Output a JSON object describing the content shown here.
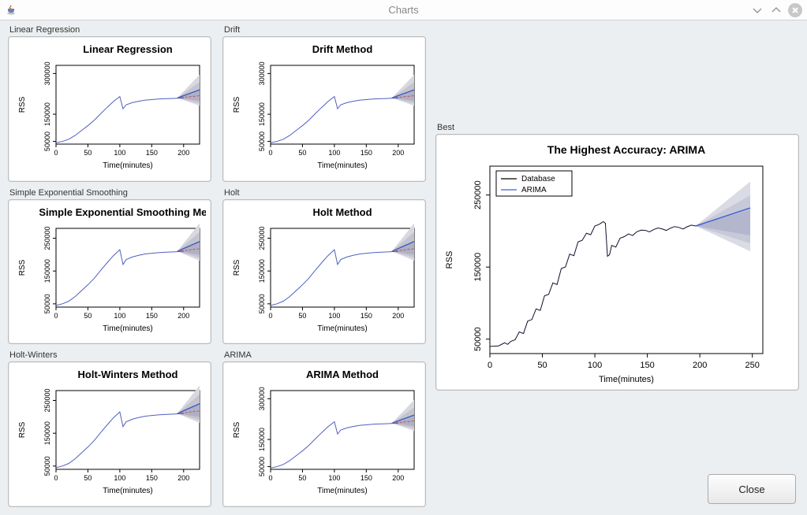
{
  "window": {
    "title": "Charts",
    "close_label": "Close"
  },
  "small_chart_common": {
    "xlabel": "Time(minutes)",
    "ylabel": "RSS",
    "xticks": [
      0,
      50,
      100,
      150,
      200
    ],
    "axis_color": "#000000",
    "text_color": "#000000",
    "line_color": "#5060c0",
    "forecast_mean_color": "#3050c0",
    "forecast_alt_color": "#c04040",
    "forecast_band_colors": [
      "#d8d8e0",
      "#c4c4d0",
      "#b0b0c4"
    ],
    "background": "#ffffff",
    "title_fontsize": 13,
    "label_fontsize": 10,
    "tick_fontsize": 9,
    "series_points_x": [
      0,
      10,
      20,
      30,
      40,
      50,
      60,
      70,
      80,
      90,
      100,
      105,
      110,
      120,
      130,
      140,
      150,
      160,
      170,
      180,
      190,
      200
    ],
    "series_points_y": [
      45000,
      50000,
      58000,
      72000,
      90000,
      108000,
      128000,
      152000,
      175000,
      197000,
      215000,
      170000,
      185000,
      193000,
      198000,
      202000,
      204000,
      206000,
      207000,
      208000,
      209000,
      210000
    ],
    "forecast_start_x": 190,
    "forecast_end_x": 225,
    "forecast_mean_end_y": 240000,
    "forecast_band_end_low": 180000,
    "forecast_band_end_high": 300000
  },
  "charts": [
    {
      "group": "Linear Regression",
      "title": "Linear Regression",
      "yticks": [
        50000,
        150000,
        300000
      ],
      "ytick_labels": [
        "50000",
        "150000",
        "300000"
      ],
      "ylim": [
        40000,
        330000
      ]
    },
    {
      "group": "Drift",
      "title": "Drift Method",
      "yticks": [
        50000,
        150000,
        300000
      ],
      "ytick_labels": [
        "50000",
        "150000",
        "300000"
      ],
      "ylim": [
        40000,
        330000
      ]
    },
    {
      "group": "Simple Exponential Smoothing",
      "title": "Simple Exponential Smoothing Meth",
      "yticks": [
        50000,
        150000,
        250000
      ],
      "ytick_labels": [
        "50000",
        "150000",
        "250000"
      ],
      "ylim": [
        40000,
        280000
      ]
    },
    {
      "group": "Holt",
      "title": "Holt Method",
      "yticks": [
        50000,
        150000,
        250000
      ],
      "ytick_labels": [
        "50000",
        "150000",
        "250000"
      ],
      "ylim": [
        40000,
        280000
      ]
    },
    {
      "group": "Holt-Winters",
      "title": "Holt-Winters Method",
      "yticks": [
        50000,
        150000,
        250000
      ],
      "ytick_labels": [
        "50000",
        "150000",
        "250000"
      ],
      "ylim": [
        40000,
        280000
      ]
    },
    {
      "group": "ARIMA",
      "title": "ARIMA Method",
      "yticks": [
        50000,
        150000,
        300000
      ],
      "ytick_labels": [
        "50000",
        "150000",
        "300000"
      ],
      "ylim": [
        40000,
        330000
      ]
    }
  ],
  "best": {
    "group": "Best",
    "title": "The Highest Accuracy: ARIMA",
    "xlabel": "Time(minutes)",
    "ylabel": "RSS",
    "xticks": [
      0,
      50,
      100,
      150,
      200,
      250
    ],
    "yticks": [
      50000,
      150000,
      250000
    ],
    "ytick_labels": [
      "50000",
      "150000",
      "250000"
    ],
    "ylim": [
      30000,
      290000
    ],
    "xlim": [
      0,
      260
    ],
    "legend": {
      "items": [
        "Database",
        "ARIMA"
      ],
      "colors": [
        "#000000",
        "#4060d0"
      ]
    },
    "hist_color": "#10102a",
    "forecast_color": "#4060d0",
    "forecast_band_colors": [
      "#dadbe4",
      "#c7c9d8",
      "#b3b6cd"
    ],
    "series_points_x": [
      0,
      8,
      14,
      20,
      28,
      36,
      44,
      52,
      60,
      68,
      76,
      84,
      92,
      100,
      108,
      112,
      116,
      124,
      132,
      140,
      148,
      156,
      164,
      172,
      180,
      188,
      196
    ],
    "series_points_y": [
      40000,
      40500,
      45000,
      47000,
      60000,
      75000,
      92000,
      110000,
      128000,
      148000,
      168000,
      185000,
      197000,
      207000,
      213000,
      165000,
      180000,
      190000,
      196000,
      199000,
      201000,
      202000,
      203000,
      204000,
      205000,
      206000,
      207000
    ],
    "forecast_start_x": 196,
    "forecast_end_x": 248,
    "forecast_mean_start_y": 207000,
    "forecast_mean_end_y": 232000,
    "forecast_band_end_low": 170000,
    "forecast_band_end_high": 272000
  }
}
